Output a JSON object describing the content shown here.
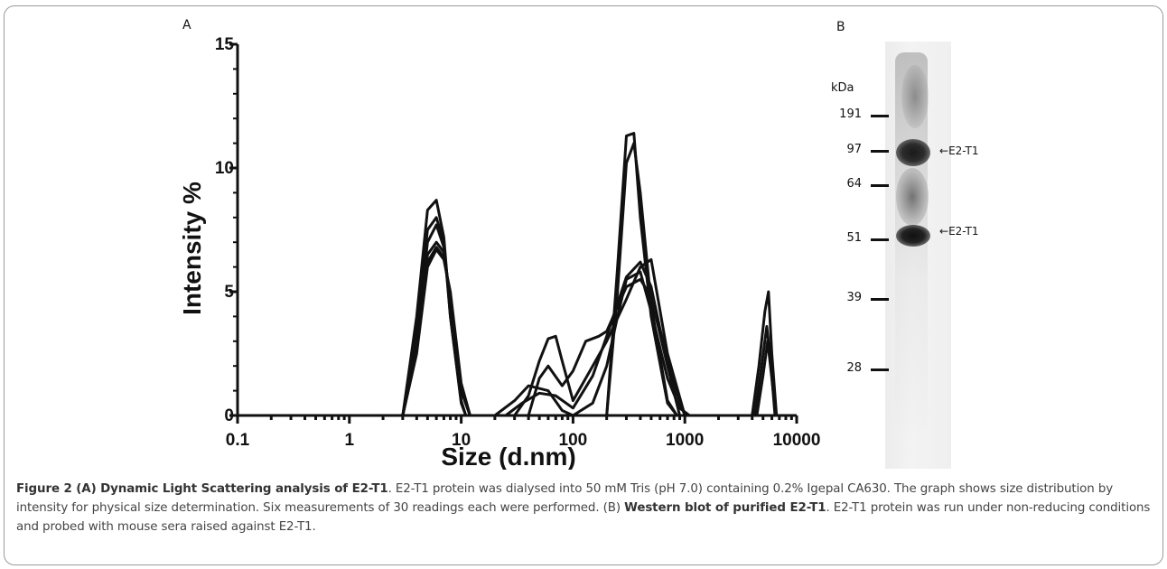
{
  "panels": {
    "a_label": "A",
    "b_label": "B"
  },
  "chart_data": {
    "type": "line",
    "xlabel": "Size (d.nm)",
    "ylabel": "Intensity %",
    "x_scale": "log",
    "xlim": [
      0.1,
      10000
    ],
    "ylim": [
      0,
      15
    ],
    "x_ticks": [
      "0.1",
      "1",
      "10",
      "100",
      "1000",
      "10000"
    ],
    "y_ticks": [
      "0",
      "5",
      "10",
      "15"
    ],
    "grid": false,
    "series": [
      {
        "x": [
          3,
          4,
          5,
          6,
          7,
          8,
          10,
          11,
          200,
          250,
          300,
          350,
          400,
          500,
          700,
          850
        ],
        "y": [
          0,
          4,
          8.3,
          8.7,
          7.2,
          4,
          0.5,
          0,
          0,
          6,
          11.3,
          11.4,
          8,
          4,
          0.5,
          0
        ]
      },
      {
        "x": [
          3,
          4,
          5,
          6,
          7,
          8,
          10,
          11,
          200,
          250,
          300,
          350,
          400,
          500,
          700,
          850
        ],
        "y": [
          0,
          3.5,
          7.5,
          8.0,
          7.0,
          4,
          0.6,
          0,
          0,
          5,
          10.2,
          11.0,
          9,
          4.5,
          0.6,
          0
        ]
      },
      {
        "x": [
          3,
          4,
          5,
          6,
          7,
          8,
          10,
          12,
          20,
          30,
          40,
          60,
          80,
          100,
          150,
          200,
          250,
          300,
          400,
          500,
          700,
          900,
          1100
        ],
        "y": [
          0,
          3,
          7,
          7.7,
          6.8,
          4.5,
          1,
          0,
          0,
          0.6,
          1.2,
          1.0,
          0.2,
          0,
          0.5,
          2,
          4,
          5.5,
          5.8,
          4.2,
          1.5,
          0.3,
          0
        ]
      },
      {
        "x": [
          3,
          4,
          5,
          6,
          7,
          8,
          10,
          12,
          25,
          35,
          50,
          70,
          100,
          150,
          200,
          300,
          400,
          500,
          600,
          800,
          1000
        ],
        "y": [
          0,
          2.8,
          6.5,
          7.0,
          6.6,
          4.6,
          1,
          0,
          0,
          0.5,
          0.9,
          0.8,
          0.3,
          1.6,
          3.2,
          5.6,
          6.2,
          5.2,
          3.5,
          1.2,
          0
        ]
      },
      {
        "x": [
          3,
          4,
          5,
          6,
          7,
          8,
          10,
          12,
          30,
          40,
          50,
          60,
          70,
          80,
          100,
          150,
          200,
          300,
          400,
          500,
          700,
          1000
        ],
        "y": [
          0,
          3,
          6.2,
          6.8,
          6.4,
          4.8,
          1.2,
          0,
          0,
          0.8,
          2.2,
          3.1,
          3.2,
          2.2,
          0.6,
          2.0,
          3.0,
          4.7,
          6.0,
          6.3,
          2.5,
          0
        ]
      },
      {
        "x": [
          3,
          4,
          5,
          6,
          7,
          8,
          10,
          12,
          40,
          50,
          60,
          80,
          100,
          130,
          170,
          200,
          300,
          400,
          500,
          700,
          900
        ],
        "y": [
          0,
          2.5,
          6,
          6.7,
          6.3,
          5,
          1.3,
          0,
          0,
          1.5,
          2.0,
          1.2,
          1.8,
          3.0,
          3.2,
          3.4,
          5.2,
          5.5,
          4.8,
          2.0,
          0
        ]
      },
      {
        "x": [
          4000,
          4600,
          5200,
          5600,
          6000,
          6600
        ],
        "y": [
          0,
          2,
          4.2,
          5.0,
          2.5,
          0
        ]
      },
      {
        "x": [
          4200,
          4800,
          5400,
          5800,
          6400
        ],
        "y": [
          0,
          1.8,
          3.6,
          2.4,
          0
        ]
      },
      {
        "x": [
          4400,
          5000,
          5500,
          6000,
          6500
        ],
        "y": [
          0,
          1.6,
          3.0,
          1.5,
          0
        ]
      }
    ]
  },
  "blot": {
    "unit_label": "kDa",
    "markers": [
      "191",
      "97",
      "64",
      "51",
      "39",
      "28"
    ],
    "band_labels": [
      "E2-T1",
      "E2-T1"
    ]
  },
  "caption": {
    "lead": "Figure 2 (A) Dynamic Light Scattering analysis of E2-T1",
    "text_a": ". E2-T1 protein was dialysed into 50 mM Tris (pH 7.0) containing 0.2% Igepal CA630. The graph shows size distribution by intensity for physical size determination. Six measurements of 30 readings each were performed. (B) Western blot of purified E2-T1",
    "text_b": ". E2-T1 protein was run under non-reducing conditions and probed with mouse sera raised against E2-T1."
  }
}
